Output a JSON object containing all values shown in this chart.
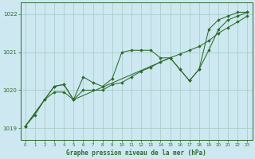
{
  "title": "Graphe pression niveau de la mer (hPa)",
  "bg_color": "#cde8f0",
  "grid_color": "#aacfcc",
  "line_color": "#2d6a2d",
  "xlim": [
    -0.5,
    23.5
  ],
  "ylim": [
    1018.7,
    1022.3
  ],
  "yticks": [
    1019,
    1020,
    1021,
    1022
  ],
  "xticks": [
    0,
    1,
    2,
    3,
    4,
    5,
    6,
    7,
    8,
    9,
    10,
    11,
    12,
    13,
    14,
    15,
    16,
    17,
    18,
    19,
    20,
    21,
    22,
    23
  ],
  "series1_x": [
    0,
    1,
    2,
    3,
    4,
    5,
    6,
    7,
    8,
    9,
    10,
    11,
    12,
    13,
    14,
    15,
    16,
    17,
    18,
    19,
    20,
    21,
    22,
    23
  ],
  "series1_y": [
    1019.05,
    1019.35,
    1019.75,
    1019.95,
    1019.95,
    1019.75,
    1020.0,
    1020.0,
    1020.0,
    1020.15,
    1020.2,
    1020.35,
    1020.5,
    1020.6,
    1020.75,
    1020.85,
    1020.95,
    1021.05,
    1021.15,
    1021.3,
    1021.5,
    1021.65,
    1021.8,
    1021.95
  ],
  "series2_x": [
    0,
    2,
    3,
    4,
    5,
    6,
    7,
    8,
    9,
    10,
    11,
    12,
    13,
    14,
    15,
    16,
    17,
    18,
    19,
    20,
    21,
    22,
    23
  ],
  "series2_y": [
    1019.05,
    1019.75,
    1020.1,
    1020.15,
    1019.75,
    1020.35,
    1020.2,
    1020.1,
    1020.3,
    1021.0,
    1021.05,
    1021.05,
    1021.05,
    1020.85,
    1020.85,
    1020.55,
    1020.25,
    1020.55,
    1021.05,
    1021.6,
    1021.85,
    1021.95,
    1022.05
  ],
  "series3_x": [
    0,
    3,
    4,
    5,
    15,
    16,
    17,
    18,
    19,
    20,
    21,
    22,
    23
  ],
  "series3_y": [
    1019.05,
    1020.1,
    1020.15,
    1019.75,
    1020.85,
    1020.55,
    1020.25,
    1020.55,
    1021.6,
    1021.85,
    1021.95,
    1022.05,
    1022.05
  ]
}
